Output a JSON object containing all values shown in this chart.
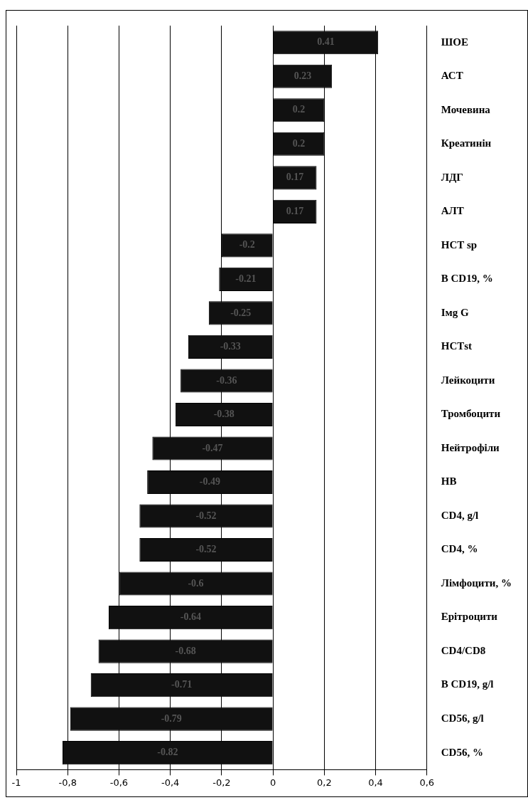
{
  "chart_data": {
    "type": "bar",
    "orientation": "horizontal",
    "categories": [
      "ШОЕ",
      "АСТ",
      "Мочевина",
      "Креатинін",
      "ЛДГ",
      "АЛТ",
      "НСТ sp",
      "B CD19, %",
      "Імg G",
      "НСТst",
      "Лейкоцити",
      "Тромбоцити",
      "Нейтрофіли",
      "HB",
      "CD4, g/l",
      "CD4, %",
      "Лімфоцити, %",
      "Ерітроцити",
      "CD4/CD8",
      "B CD19, g/l",
      "CD56, g/l",
      "CD56, %"
    ],
    "values": [
      0.41,
      0.23,
      0.2,
      0.2,
      0.17,
      0.17,
      -0.2,
      -0.21,
      -0.25,
      -0.33,
      -0.36,
      -0.38,
      -0.47,
      -0.49,
      -0.52,
      -0.52,
      -0.6,
      -0.64,
      -0.68,
      -0.71,
      -0.79,
      -0.82
    ],
    "color": "#111111",
    "data_labels": true,
    "xlim": [
      -1,
      0.6
    ],
    "xticks": [
      -1,
      {
        "value": -0.8,
        "label": "-0,8"
      },
      {
        "value": -0.6,
        "label": "-0,6"
      },
      {
        "value": -0.4,
        "label": "-0,4"
      },
      {
        "value": -0.2,
        "label": "-0,2"
      },
      0,
      {
        "value": 0.2,
        "label": "0,2"
      },
      {
        "value": 0.4,
        "label": "0,4"
      },
      {
        "value": 0.6,
        "label": "0,6"
      }
    ],
    "grid": "x",
    "legend": false
  }
}
